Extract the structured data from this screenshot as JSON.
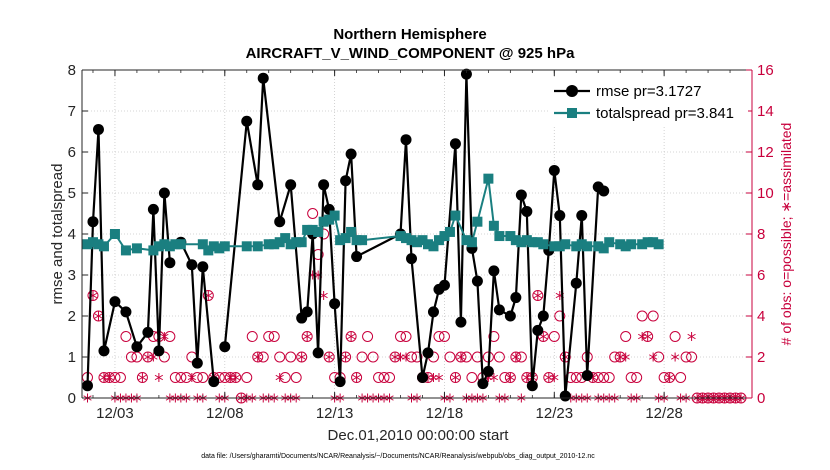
{
  "chart_data": {
    "type": "line",
    "title": "Northern Hemisphere",
    "subtitle": "AIRCRAFT_V_WIND_COMPONENT @ 925 hPa",
    "xlabel": "Dec.01,2010 00:00:00 start",
    "ylabel_left": "rmse and totalspread",
    "ylabel_right": "# of obs: o=possible; ∗=assimilated",
    "xlim": [
      1.5,
      32
    ],
    "ylim_left": [
      0,
      8
    ],
    "ylim_right": [
      0,
      16
    ],
    "xticks": [
      3,
      8,
      13,
      18,
      23,
      28
    ],
    "xtick_labels": [
      "12/03",
      "12/08",
      "12/13",
      "12/18",
      "12/23",
      "12/28"
    ],
    "yticks_left": [
      0,
      1,
      2,
      3,
      4,
      5,
      6,
      7,
      8
    ],
    "yticks_right": [
      0,
      2,
      4,
      6,
      8,
      10,
      12,
      14,
      16
    ],
    "legend_position": "top-right",
    "footnote": "data file: /Users/gharamti/Documents/NCAR/Reanalysis/~/Documents/NCAR/Reanalysis/webpub/obs_diag_output_2010-12.nc",
    "series": [
      {
        "name": "rmse pr=3.1727",
        "axis": "left",
        "color": "#000000",
        "marker": "circle",
        "x": [
          1.75,
          2.0,
          2.25,
          2.5,
          3.0,
          3.5,
          4.0,
          4.5,
          4.75,
          5.0,
          5.25,
          5.5,
          5.75,
          6.0,
          6.5,
          6.75,
          7.0,
          7.5,
          7.75,
          8.0,
          9.0,
          9.5,
          9.75,
          10.5,
          11.0,
          11.5,
          11.75,
          12.0,
          12.25,
          12.5,
          12.75,
          13.0,
          13.25,
          13.5,
          13.75,
          14.0,
          16.0,
          16.25,
          16.5,
          17.0,
          17.25,
          17.5,
          17.75,
          18.0,
          18.5,
          18.75,
          19.0,
          19.25,
          19.5,
          19.75,
          20.0,
          20.25,
          20.5,
          21.0,
          21.25,
          21.5,
          21.75,
          22.0,
          22.25,
          22.5,
          22.75,
          23.0,
          23.25,
          23.5,
          24.0,
          24.25,
          24.5,
          25.0,
          25.25,
          25.5,
          26.0,
          26.5,
          26.75,
          27.0,
          27.5,
          27.75,
          28.0,
          28.25,
          28.5,
          28.75,
          29.0,
          29.25
        ],
        "values": [
          0.3,
          4.3,
          6.55,
          1.15,
          2.35,
          2.1,
          1.25,
          1.6,
          4.6,
          1.15,
          5.0,
          3.3,
          null,
          3.8,
          3.25,
          0.85,
          3.2,
          0.4,
          null,
          1.25,
          6.75,
          5.2,
          7.8,
          4.3,
          5.2,
          1.95,
          2.1,
          4.0,
          1.1,
          5.2,
          4.6,
          2.3,
          0.4,
          5.3,
          5.95,
          3.45,
          4.0,
          6.3,
          3.4,
          0.5,
          1.1,
          2.1,
          2.65,
          2.75,
          6.2,
          1.85,
          7.9,
          3.65,
          2.85,
          0.35,
          0.65,
          3.1,
          2.15,
          2.0,
          2.45,
          4.95,
          4.55,
          0.3,
          1.65,
          2.0,
          3.6,
          5.55,
          4.45,
          0.05,
          2.8,
          4.45,
          0.55,
          5.15,
          5.05,
          null,
          null,
          null,
          null,
          null,
          null,
          null,
          null,
          null,
          null,
          null,
          null,
          null
        ]
      },
      {
        "name": "totalspread pr=3.841",
        "axis": "left",
        "color": "#1a7f80",
        "marker": "square",
        "x": [
          1.75,
          2.0,
          2.25,
          2.5,
          3.0,
          3.5,
          4.0,
          4.75,
          5.0,
          5.25,
          5.5,
          5.75,
          6.0,
          7.0,
          7.25,
          7.5,
          7.75,
          8.0,
          9.0,
          9.5,
          10.0,
          10.25,
          10.5,
          10.75,
          11.0,
          11.25,
          11.5,
          11.75,
          12.0,
          12.25,
          12.5,
          12.75,
          13.0,
          13.25,
          13.5,
          13.75,
          14.0,
          14.25,
          16.0,
          16.25,
          16.5,
          16.75,
          17.0,
          17.25,
          17.5,
          17.75,
          18.0,
          18.25,
          18.5,
          19.0,
          19.25,
          19.5,
          20.0,
          20.25,
          20.5,
          21.0,
          21.25,
          21.5,
          21.75,
          22.0,
          22.25,
          22.5,
          23.0,
          23.25,
          23.5,
          24.0,
          24.25,
          24.5,
          25.0,
          25.25,
          25.5,
          26.0,
          26.25,
          26.5,
          27.0,
          27.25,
          27.5,
          27.75
        ],
        "values": [
          3.75,
          3.8,
          3.75,
          3.7,
          4.0,
          3.6,
          3.65,
          3.6,
          3.7,
          3.75,
          3.7,
          3.75,
          3.75,
          3.75,
          3.6,
          3.7,
          3.65,
          3.7,
          3.7,
          3.7,
          3.75,
          3.75,
          3.8,
          3.9,
          3.75,
          3.8,
          3.8,
          4.1,
          4.1,
          4.05,
          4.3,
          4.35,
          4.45,
          3.85,
          3.9,
          4.05,
          3.85,
          3.85,
          3.95,
          3.9,
          3.85,
          3.8,
          3.85,
          3.75,
          3.7,
          3.85,
          3.95,
          4.05,
          4.45,
          3.85,
          3.8,
          4.3,
          5.35,
          4.2,
          3.95,
          3.95,
          3.85,
          3.8,
          3.85,
          3.8,
          3.8,
          3.75,
          3.7,
          3.7,
          3.75,
          3.7,
          3.75,
          3.7,
          3.7,
          3.65,
          3.8,
          3.75,
          3.7,
          3.75,
          3.75,
          3.8,
          3.8,
          3.75
        ]
      },
      {
        "name": "possible",
        "axis": "right",
        "color": "#c8003c",
        "marker": "open-circle",
        "x": [
          1.75,
          2.0,
          2.25,
          2.5,
          2.75,
          3.0,
          3.25,
          3.5,
          3.75,
          4.0,
          4.25,
          4.5,
          4.75,
          5.0,
          5.25,
          5.5,
          5.75,
          6.0,
          6.25,
          6.5,
          6.75,
          7.0,
          7.25,
          7.5,
          7.75,
          8.0,
          8.25,
          8.5,
          8.75,
          9.0,
          9.25,
          9.5,
          9.75,
          10.0,
          10.25,
          10.5,
          10.75,
          11.0,
          11.25,
          11.5,
          11.75,
          12.0,
          12.25,
          12.5,
          12.75,
          13.0,
          13.25,
          13.5,
          13.75,
          14.0,
          14.25,
          14.5,
          14.75,
          15.0,
          15.25,
          15.5,
          15.75,
          16.0,
          16.25,
          16.5,
          16.75,
          17.0,
          17.25,
          17.5,
          17.75,
          18.0,
          18.25,
          18.5,
          18.75,
          19.0,
          19.25,
          19.5,
          19.75,
          20.0,
          20.25,
          20.5,
          20.75,
          21.0,
          21.25,
          21.5,
          21.75,
          22.0,
          22.25,
          22.5,
          22.75,
          23.0,
          23.25,
          23.5,
          23.75,
          24.0,
          24.25,
          24.5,
          24.75,
          25.0,
          25.25,
          25.5,
          25.75,
          26.0,
          26.25,
          26.5,
          26.75,
          27.0,
          27.25,
          27.5,
          27.75,
          28.0,
          28.25,
          28.5,
          28.75,
          29.0,
          29.25,
          29.5,
          29.75,
          30.0,
          30.25,
          30.5,
          30.75,
          31.0,
          31.25,
          31.5
        ],
        "values": [
          1,
          5,
          4,
          1,
          1,
          1,
          1,
          3,
          2,
          2,
          1,
          2,
          3,
          3,
          2,
          3,
          1,
          1,
          1,
          2,
          1,
          1,
          5,
          1,
          1,
          1,
          1,
          1,
          0,
          1,
          3,
          2,
          2,
          3,
          3,
          2,
          1,
          2,
          1,
          2,
          3,
          9,
          7,
          8,
          2,
          1,
          1,
          2,
          3,
          1,
          2,
          3,
          2,
          1,
          1,
          1,
          2,
          3,
          3,
          2,
          2,
          1,
          1,
          2,
          3,
          3,
          2,
          1,
          2,
          2,
          1,
          2,
          1,
          2,
          3,
          2,
          1,
          1,
          2,
          2,
          1,
          1,
          5,
          3,
          1,
          3,
          4,
          2,
          1,
          1,
          1,
          2,
          1,
          1,
          1,
          1,
          2,
          2,
          3,
          1,
          1,
          4,
          3,
          4,
          2,
          1,
          1,
          3,
          1,
          2,
          2,
          0,
          0,
          0,
          0,
          0,
          0,
          0,
          0,
          0
        ]
      },
      {
        "name": "assimilated",
        "axis": "right",
        "color": "#c8003c",
        "marker": "asterisk",
        "x": [
          1.75,
          2.0,
          2.25,
          2.5,
          2.75,
          3.0,
          3.25,
          3.5,
          3.75,
          4.0,
          4.25,
          4.5,
          4.75,
          5.0,
          5.25,
          5.5,
          5.75,
          6.0,
          6.25,
          6.5,
          6.75,
          7.0,
          7.25,
          7.5,
          7.75,
          8.0,
          8.25,
          8.5,
          8.75,
          9.0,
          9.25,
          9.5,
          9.75,
          10.0,
          10.25,
          10.5,
          10.75,
          11.0,
          11.25,
          11.5,
          11.75,
          12.0,
          12.25,
          12.5,
          12.75,
          13.0,
          13.25,
          13.5,
          13.75,
          14.0,
          14.25,
          14.5,
          14.75,
          15.0,
          15.25,
          15.5,
          15.75,
          16.0,
          16.25,
          16.5,
          16.75,
          17.0,
          17.25,
          17.5,
          17.75,
          18.0,
          18.25,
          18.5,
          18.75,
          19.0,
          19.25,
          19.5,
          19.75,
          20.0,
          20.25,
          20.5,
          20.75,
          21.0,
          21.25,
          21.5,
          21.75,
          22.0,
          22.25,
          22.5,
          22.75,
          23.0,
          23.25,
          23.5,
          23.75,
          24.0,
          24.25,
          24.5,
          24.75,
          25.0,
          25.25,
          25.5,
          25.75,
          26.0,
          26.25,
          26.5,
          26.75,
          27.0,
          27.25,
          27.5,
          27.75,
          28.0,
          28.25,
          28.5,
          28.75,
          29.0,
          29.25,
          29.5,
          29.75,
          30.0,
          30.25,
          30.5,
          30.75,
          31.0,
          31.25,
          31.5
        ],
        "values": [
          0,
          5,
          4,
          1,
          1,
          0,
          0,
          0,
          0,
          0,
          1,
          2,
          2,
          1,
          3,
          0,
          0,
          0,
          0,
          1,
          0,
          0,
          5,
          1,
          0,
          0,
          1,
          1,
          0,
          0,
          0,
          2,
          0,
          0,
          0,
          1,
          0,
          0,
          0,
          2,
          3,
          6,
          6,
          5,
          2,
          0,
          0,
          2,
          3,
          1,
          0,
          0,
          0,
          0,
          0,
          0,
          2,
          2,
          2,
          0,
          0,
          1,
          1,
          1,
          1,
          0,
          0,
          1,
          2,
          0,
          0,
          0,
          0,
          1,
          1,
          0,
          0,
          1,
          2,
          0,
          1,
          1,
          5,
          3,
          1,
          1,
          5,
          2,
          0,
          0,
          0,
          0,
          1,
          0,
          0,
          0,
          0,
          2,
          2,
          0,
          0,
          3,
          3,
          2,
          0,
          0,
          1,
          2,
          0,
          0,
          3,
          0,
          0,
          0,
          0,
          0,
          0,
          0,
          0,
          0
        ]
      }
    ]
  }
}
